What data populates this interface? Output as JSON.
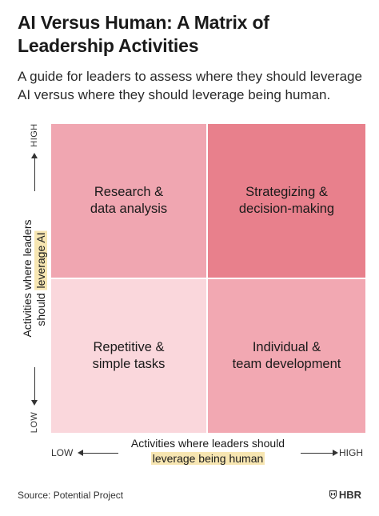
{
  "title": "AI Versus Human: A Matrix of\nLeadership Activities",
  "subtitle": "A guide for leaders to assess where they should leverage AI versus where they should leverage being human.",
  "colors": {
    "top_left": "#f0a6b1",
    "top_right": "#e8808c",
    "bottom_left": "#fad7dc",
    "bottom_right": "#f2a8b2",
    "highlight": "#f7e6b2"
  },
  "quadrants": {
    "top_left": "Research &\ndata analysis",
    "top_right": "Strategizing &\ndecision-making",
    "bottom_left": "Repetitive &\nsimple tasks",
    "bottom_right": "Individual &\nteam development"
  },
  "y_axis": {
    "high": "HIGH",
    "low": "LOW",
    "label_line1": "Activities where leaders",
    "label_line2_plain": "should ",
    "label_line2_highlight": "leverage AI"
  },
  "x_axis": {
    "low": "LOW",
    "high": "HIGH",
    "label_line1": "Activities where leaders should",
    "label_line2_highlight": "leverage being human"
  },
  "source": "Source: Potential Project",
  "brand": "HBR",
  "brand_icon": "hbr-shield-icon"
}
